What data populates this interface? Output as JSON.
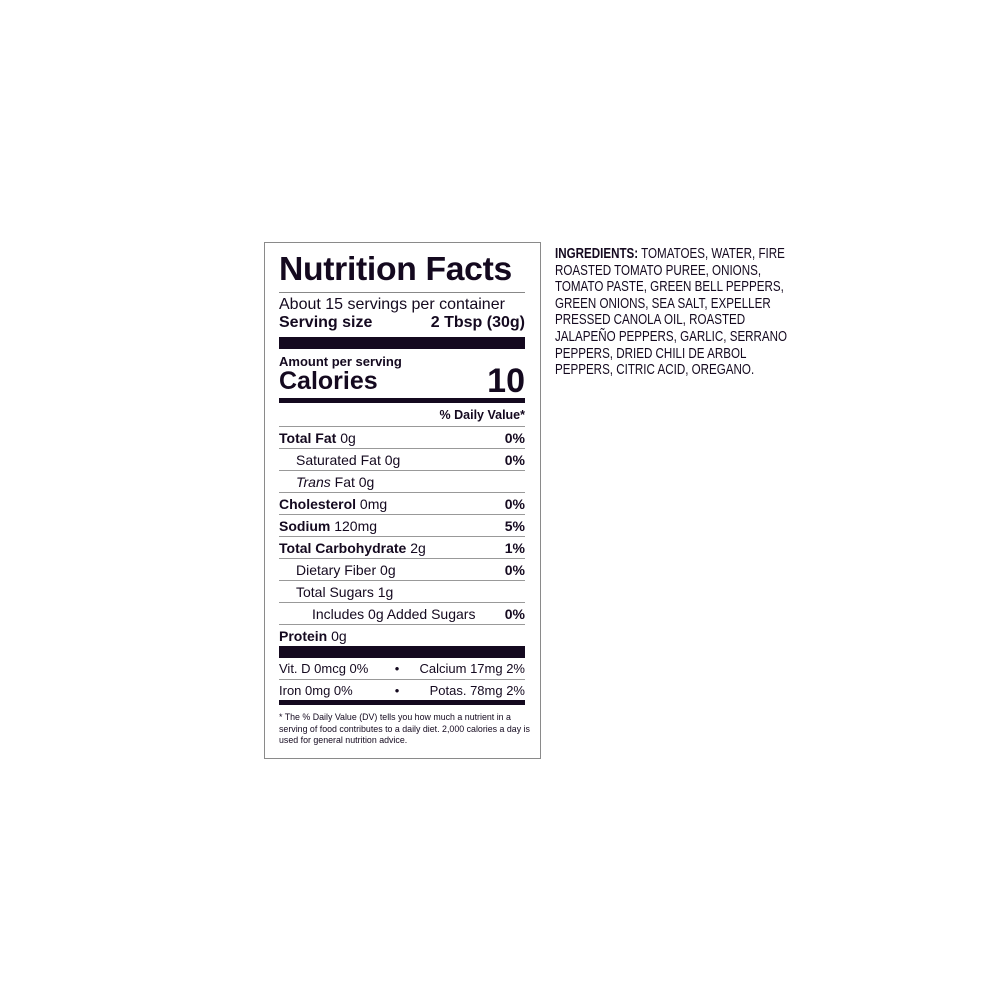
{
  "label": {
    "title": "Nutrition Facts",
    "servings": "About 15 servings per container",
    "serving_size_label": "Serving size",
    "serving_size_value": "2 Tbsp (30g)",
    "amount_per_serving": "Amount per serving",
    "calories_label": "Calories",
    "calories_value": "10",
    "dv_header": "% Daily Value*",
    "rows": [
      {
        "name": "Total Fat",
        "amount": "0g",
        "dv": "0%"
      },
      {
        "name": "Saturated Fat",
        "amount": "0g",
        "dv": "0%"
      },
      {
        "name": "Trans",
        "name_rest": " Fat",
        "amount": "0g",
        "dv": ""
      },
      {
        "name": "Cholesterol",
        "amount": "0mg",
        "dv": "0%"
      },
      {
        "name": "Sodium",
        "amount": "120mg",
        "dv": "5%"
      },
      {
        "name": "Total Carbohydrate",
        "amount": "2g",
        "dv": "1%"
      },
      {
        "name": "Dietary Fiber",
        "amount": "0g",
        "dv": "0%"
      },
      {
        "name": "Total Sugars",
        "amount": "1g",
        "dv": ""
      },
      {
        "name": "Includes 0g Added Sugars",
        "amount": "",
        "dv": "0%"
      },
      {
        "name": "Protein",
        "amount": "0g",
        "dv": ""
      }
    ],
    "vitamins": [
      {
        "left": "Vit. D 0mcg 0%",
        "bullet": "•",
        "right": "Calcium 17mg 2%"
      },
      {
        "left": "Iron 0mg 0%",
        "bullet": "•",
        "right": "Potas. 78mg 2%"
      }
    ],
    "footnote": "* The % Daily Value (DV) tells you how much a nutrient in a serving of food contributes to a daily diet. 2,000 calories a day is used for general nutrition advice."
  },
  "ingredients": {
    "label": "INGREDIENTS:",
    "lines": [
      " TOMATOES, WATER, FIRE",
      "ROASTED TOMATO PUREE, ONIONS,",
      "TOMATO PASTE, GREEN BELL PEPPERS,",
      "GREEN ONIONS, SEA SALT, EXPELLER",
      "PRESSED CANOLA OIL, ROASTED",
      "JALAPEÑO PEPPERS, GARLIC, SERRANO",
      "PEPPERS, DRIED CHILI DE ARBOL",
      "PEPPERS, CITRIC ACID, OREGANO."
    ]
  }
}
